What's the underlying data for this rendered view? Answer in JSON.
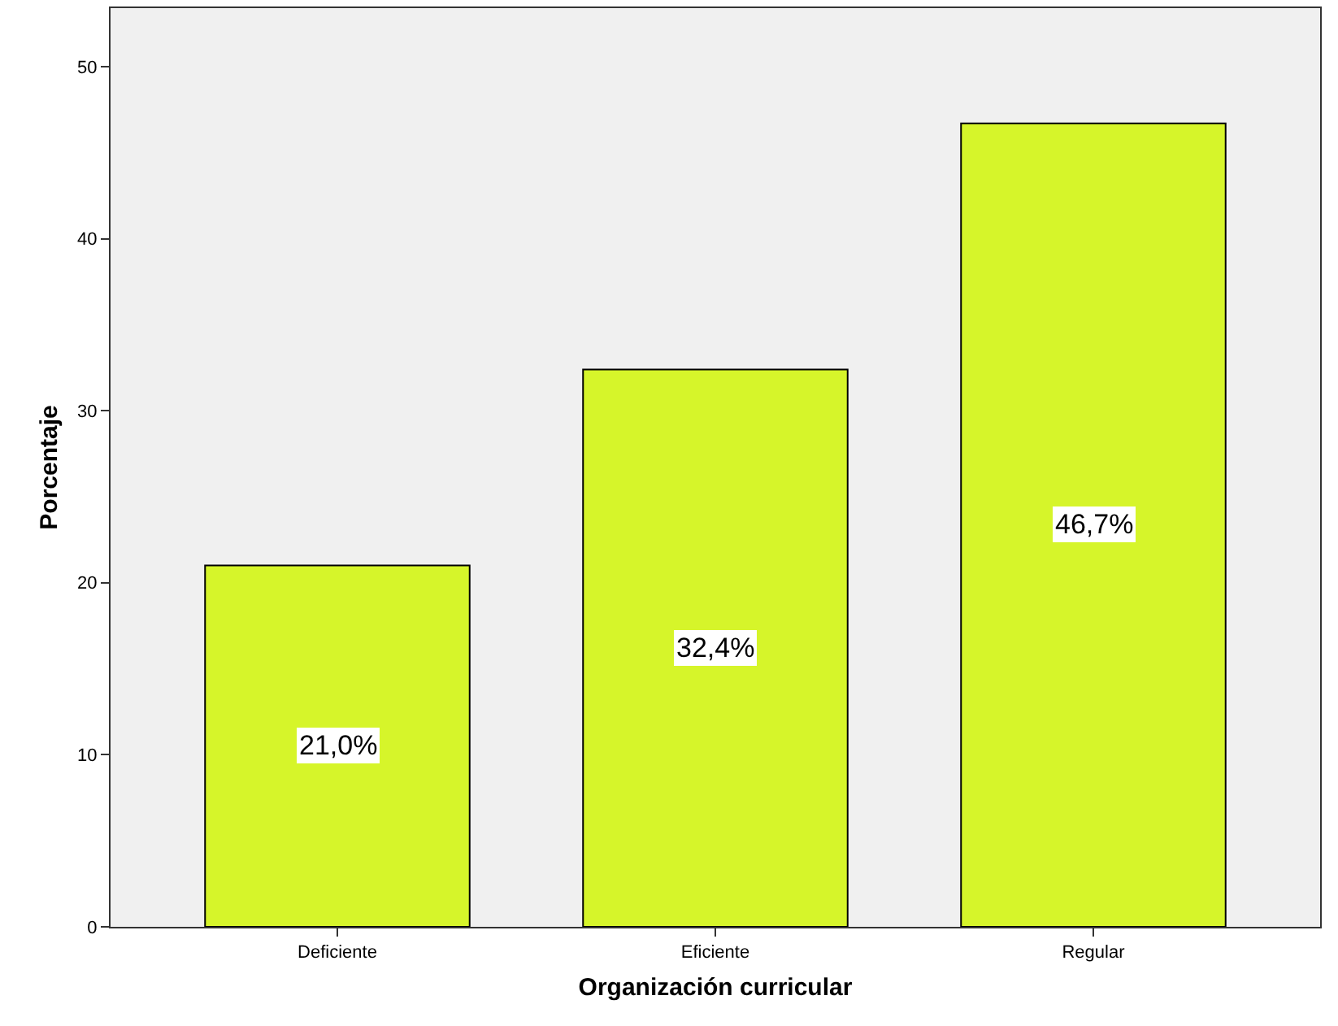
{
  "chart_data": {
    "type": "bar",
    "xlabel": "Organización curricular",
    "ylabel": "Porcentaje",
    "categories": [
      "Deficiente",
      "Eficiente",
      "Regular"
    ],
    "values": [
      21.0,
      32.4,
      46.7
    ],
    "value_labels": [
      "21,0%",
      "32,4%",
      "46,7%"
    ],
    "color": "#d6f52a",
    "ylim": [
      0,
      53.4
    ],
    "yticks": [
      0,
      10,
      20,
      30,
      40,
      50
    ],
    "grid": false
  }
}
